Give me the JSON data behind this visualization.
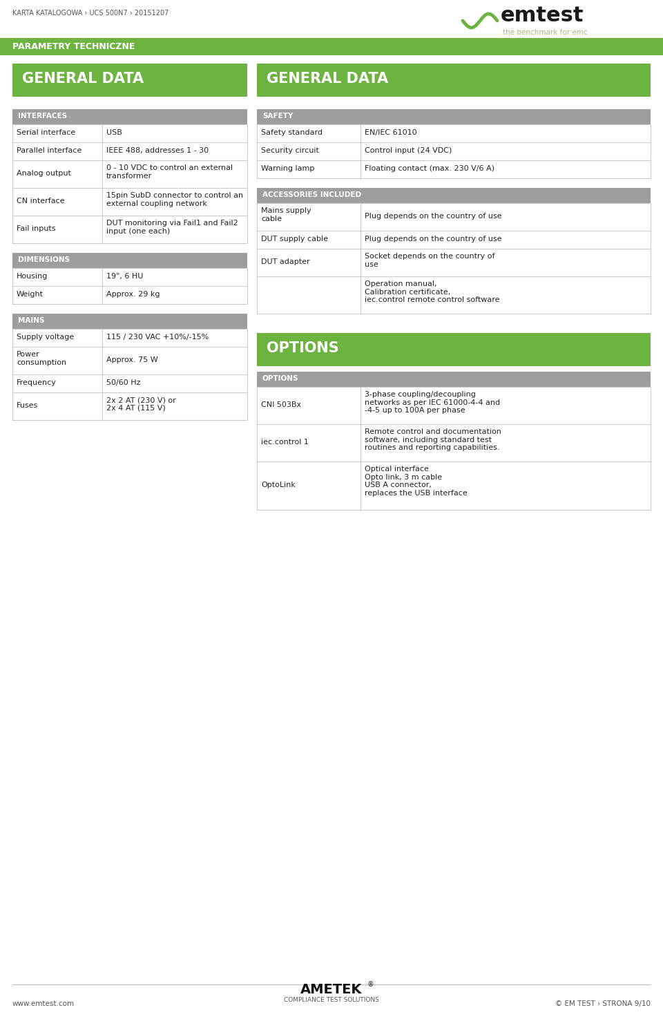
{
  "page_header": "KARTA KATALOGOWA › UCS 500N7 › 20151207",
  "logo_tagline": "the benchmark for emc",
  "section_bar": "PARAMETRY TECHNICZNE",
  "col1_header": "GENERAL DATA",
  "col2_header": "GENERAL DATA",
  "options_header": "OPTIONS",
  "bg_color": "#ffffff",
  "green_color": "#6db33f",
  "gray_header_color": "#9e9e9e",
  "text_dark": "#222222",
  "footer_text_left": "www.emtest.com",
  "footer_text_right": "© EM TEST › STRONA 9/10",
  "interfaces_rows": [
    [
      "Serial interface",
      "USB"
    ],
    [
      "Parallel interface",
      "IEEE 488, addresses 1 - 30"
    ],
    [
      "Analog output",
      "0 - 10 VDC to control an external\ntransformer"
    ],
    [
      "CN interface",
      "15pin SubD connector to control an\nexternal coupling network"
    ],
    [
      "Fail inputs",
      "DUT monitoring via Fail1 and Fail2\ninput (one each)"
    ]
  ],
  "dimensions_rows": [
    [
      "Housing",
      "19\", 6 HU"
    ],
    [
      "Weight",
      "Approx. 29 kg"
    ]
  ],
  "mains_rows": [
    [
      "Supply voltage",
      "115 / 230 VAC +10%/-15%"
    ],
    [
      "Power\nconsumption",
      "Approx. 75 W"
    ],
    [
      "Frequency",
      "50/60 Hz"
    ],
    [
      "Fuses",
      "2x 2 AT (230 V) or\n2x 4 AT (115 V)"
    ]
  ],
  "safety_rows": [
    [
      "Safety standard",
      "EN/IEC 61010"
    ],
    [
      "Security circuit",
      "Control input (24 VDC)"
    ],
    [
      "Warning lamp",
      "Floating contact (max. 230 V/6 A)"
    ]
  ],
  "accessories_rows": [
    [
      "Mains supply\ncable",
      "Plug depends on the country of use"
    ],
    [
      "DUT supply cable",
      "Plug depends on the country of use"
    ],
    [
      "DUT adapter",
      "Socket depends on the country of\nuse"
    ],
    [
      "",
      "Operation manual,\nCalibration certificate,\niec.control remote control software"
    ]
  ],
  "options_rows": [
    [
      "CNI 503Bx",
      "3-phase coupling/decoupling\nnetworks as per IEC 61000-4-4 and\n-4-5 up to 100A per phase"
    ],
    [
      "iec.control 1",
      "Remote control and documentation\nsoftware, including standard test\nroutines and reporting capabilities."
    ],
    [
      "OptoLink",
      "Optical interface\nOpto link, 3 m cable\nUSB A connector,\nreplaces the USB interface"
    ]
  ]
}
